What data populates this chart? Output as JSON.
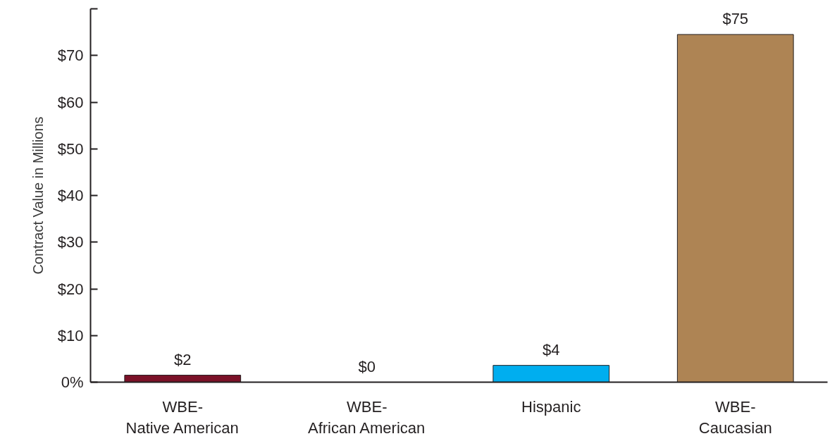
{
  "chart_data": {
    "type": "bar",
    "ylabel": "Contract Value in Millions",
    "categories": [
      "WBE-\nNative American",
      "WBE-\nAfrican American",
      "Hispanic",
      "WBE-\nCaucasian"
    ],
    "values": [
      1.5,
      0,
      3.6,
      74.5
    ],
    "colors": [
      "#7b1128",
      "#231f20",
      "#00aeef",
      "#ae8454"
    ],
    "value_labels": [
      "$2",
      "$0",
      "$4",
      "$75"
    ],
    "ylim": [
      0,
      80
    ],
    "yticks": [
      {
        "value": 0,
        "label": "0%"
      },
      {
        "value": 10,
        "label": "$10"
      },
      {
        "value": 20,
        "label": "$20"
      },
      {
        "value": 30,
        "label": "$30"
      },
      {
        "value": 40,
        "label": "$40"
      },
      {
        "value": 50,
        "label": "$50"
      },
      {
        "value": 60,
        "label": "$60"
      },
      {
        "value": 70,
        "label": "$70"
      },
      {
        "value": 80,
        "label": null
      }
    ]
  }
}
